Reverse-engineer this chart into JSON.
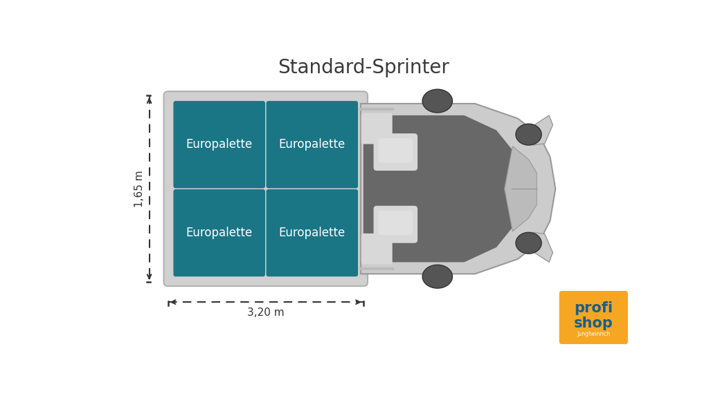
{
  "title": "Standard-Sprinter",
  "title_fontsize": 20,
  "title_color": "#3a3a3a",
  "bg_color": "#ffffff",
  "cargo_rect_color": "#d0d0d0",
  "cargo_rect_edge": "#b0b0b0",
  "palette_color": "#1a7585",
  "palette_text": "Europalette",
  "palette_text_color": "#ffffff",
  "palette_text_fontsize": 12,
  "dim_label_165": "1,65 m",
  "dim_label_320": "3,20 m",
  "dim_label_fontsize": 11,
  "van_light_gray": "#cccccc",
  "van_mid_gray": "#bbbbbb",
  "van_dark_gray": "#777777",
  "van_edge_gray": "#999999",
  "van_interior_dark": "#686868",
  "van_window_light": "#d8d8d8",
  "wheel_color": "#555555",
  "logo_bg": "#f5a623",
  "logo_text1": "#1a5f8a",
  "logo_text2": "#ffffff",
  "logo_small": "#ffffff"
}
